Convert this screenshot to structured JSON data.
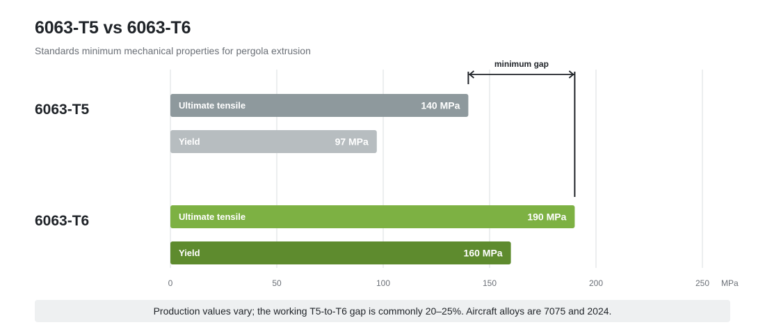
{
  "title": "6063-T5 vs 6063-T6",
  "subtitle": "Standards minimum mechanical properties for pergola extrusion",
  "footnote": "Production values vary; the working T5-to-T6 gap is commonly 20–25%. Aircraft alloys are 7075 and 2024.",
  "chart_data": {
    "type": "bar",
    "orientation": "horizontal",
    "title": "6063-T5 vs 6063-T6",
    "subtitle": "Standards minimum mechanical properties for pergola extrusion",
    "unit": "MPa",
    "xlim": [
      0,
      250
    ],
    "ticks": [
      0,
      50,
      100,
      150,
      200,
      250
    ],
    "grid": true,
    "groups": [
      {
        "name": "6063-T5",
        "bars": [
          {
            "label": "Ultimate tensile",
            "value": 140,
            "value_label": "140 MPa",
            "color": "#8e999d"
          },
          {
            "label": "Yield",
            "value": 97,
            "value_label": "97 MPa",
            "color": "#b7bdc0"
          }
        ]
      },
      {
        "name": "6063-T6",
        "bars": [
          {
            "label": "Ultimate tensile",
            "value": 190,
            "value_label": "190 MPa",
            "color": "#7db143"
          },
          {
            "label": "Yield",
            "value": 160,
            "value_label": "160 MPa",
            "color": "#5e8b2e"
          }
        ]
      }
    ],
    "annotation": {
      "label": "minimum gap",
      "from": 140,
      "to": 190
    }
  }
}
